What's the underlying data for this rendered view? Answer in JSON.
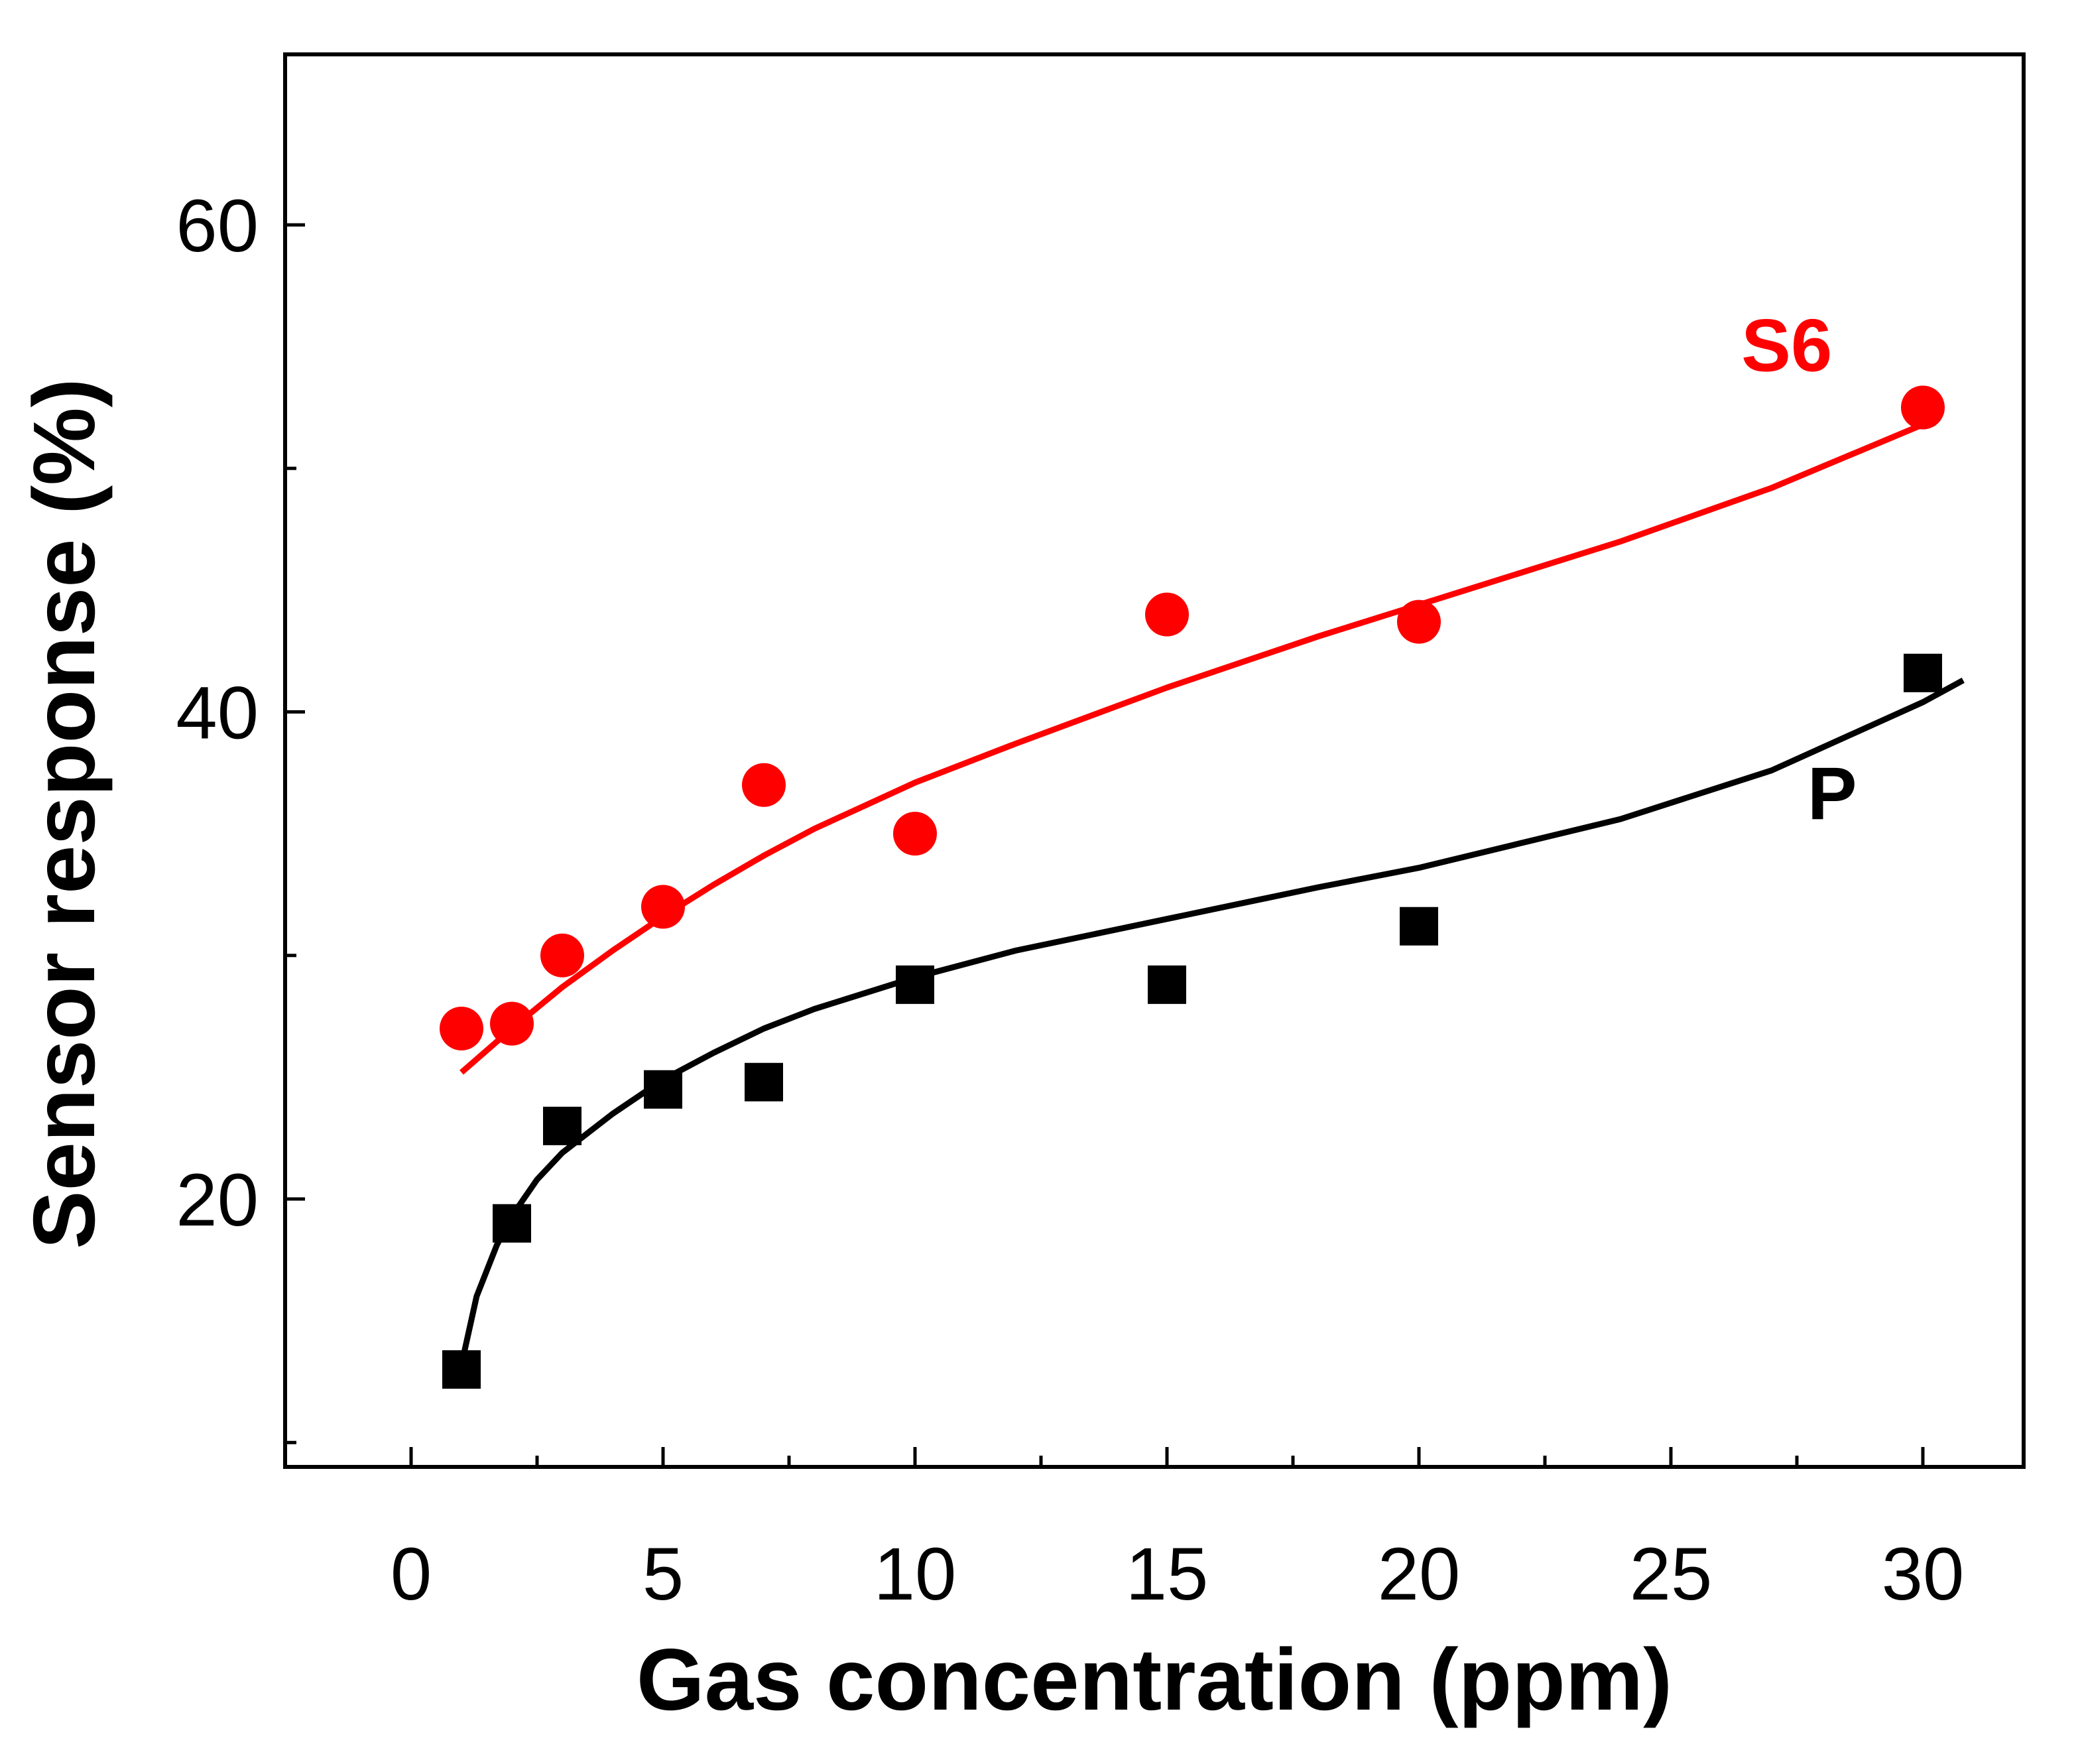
{
  "chart_data": {
    "type": "scatter",
    "title": "",
    "xlabel": "Gas concentration (ppm)",
    "ylabel": "Sensor response (%)",
    "xlim": [
      -2.5,
      32
    ],
    "ylim": [
      9,
      67
    ],
    "x_ticks": [
      0,
      5,
      10,
      15,
      20,
      25,
      30
    ],
    "x_tick_labels": [
      "0",
      "5",
      "10",
      "15",
      "20",
      "25",
      "30"
    ],
    "y_ticks": [
      20,
      40,
      60
    ],
    "y_tick_labels": [
      "20",
      "40",
      "60"
    ],
    "grid": false,
    "legend": "inline",
    "series": [
      {
        "name": "S6",
        "label": "S6",
        "color": "#ff0000",
        "marker": "circle",
        "x": [
          1,
          2,
          3,
          5,
          7,
          10,
          15,
          20,
          30
        ],
        "y": [
          27.0,
          27.2,
          30.0,
          32.0,
          37.0,
          35.0,
          44.0,
          43.7,
          52.5
        ],
        "fit_x": [
          1,
          2,
          3,
          4,
          5,
          6,
          7,
          8,
          10,
          12,
          15,
          18,
          20,
          24,
          27,
          30
        ],
        "fit_y": [
          25.2,
          27.0,
          28.7,
          30.2,
          31.6,
          32.9,
          34.1,
          35.2,
          37.1,
          38.7,
          41.0,
          43.1,
          44.4,
          47.0,
          49.2,
          51.8
        ]
      },
      {
        "name": "P",
        "label": "P",
        "color": "#000000",
        "marker": "square",
        "x": [
          1,
          2,
          3,
          5,
          7,
          10,
          15,
          20,
          30
        ],
        "y": [
          13.0,
          19.0,
          23.0,
          24.5,
          24.8,
          28.8,
          28.8,
          31.2,
          41.6
        ],
        "fit_x": [
          1,
          1.3,
          1.7,
          2,
          2.5,
          3,
          4,
          5,
          6,
          7,
          8,
          10,
          12,
          15,
          18,
          20,
          24,
          27,
          30,
          30.8
        ],
        "fit_y": [
          13.2,
          16.0,
          18.1,
          19.3,
          20.8,
          21.9,
          23.5,
          24.9,
          26.0,
          27.0,
          27.8,
          29.1,
          30.2,
          31.5,
          32.8,
          33.6,
          35.6,
          37.6,
          40.4,
          41.3
        ]
      }
    ]
  }
}
